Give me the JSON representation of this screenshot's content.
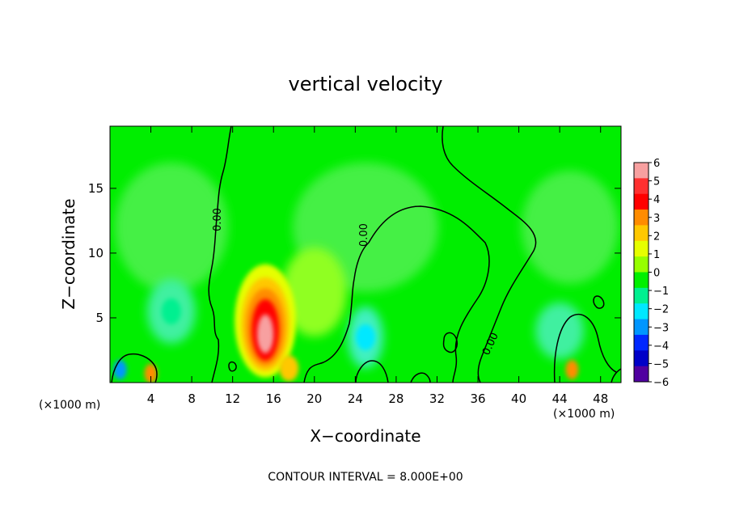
{
  "chart_data": {
    "type": "heatmap",
    "title": "vertical velocity",
    "xlabel": "X−coordinate",
    "ylabel": "Z−coordinate",
    "x_unit_label": "(×1000 m)",
    "y_unit_label": "(×1000 m)",
    "footer": "CONTOUR INTERVAL = 8.000E+00",
    "xlim": [
      0,
      50
    ],
    "ylim": [
      0,
      19.8
    ],
    "x_ticks": [
      4,
      8,
      12,
      16,
      20,
      24,
      28,
      32,
      36,
      40,
      44,
      48
    ],
    "y_ticks": [
      5,
      10,
      15
    ],
    "colorbar": {
      "range": [
        -6,
        6
      ],
      "tick_labels": [
        "6",
        "5",
        "4",
        "3",
        "2",
        "1",
        "0",
        "−1",
        "−2",
        "−3",
        "−4",
        "−5",
        "−6"
      ],
      "colors": [
        "#f7a0a0",
        "#ff3030",
        "#ff0000",
        "#ff8c00",
        "#ffc800",
        "#e6ff00",
        "#96ff00",
        "#00f000",
        "#00f090",
        "#00e8ff",
        "#0096ff",
        "#0028ff",
        "#0000c8",
        "#5000a0"
      ]
    },
    "zero_contour_label": "0.00",
    "zero_contour_label_2": "0.00",
    "zero_contour_label_3": "0.00",
    "features": [
      {
        "name": "main updraft",
        "x": 15.2,
        "z": 3.5,
        "value": 5.8
      },
      {
        "name": "updraft cell",
        "x": 4.0,
        "z": 0.7,
        "value": 3.0
      },
      {
        "name": "updraft cell",
        "x": 17.5,
        "z": 1.1,
        "value": 2.2
      },
      {
        "name": "updraft cell",
        "x": 45.2,
        "z": 1.0,
        "value": 3.2
      },
      {
        "name": "downdraft cell",
        "x": 1.0,
        "z": 1.0,
        "value": -2.8
      },
      {
        "name": "downdraft region",
        "x": 25.0,
        "z": 3.5,
        "value": -1.8
      },
      {
        "name": "downdraft region",
        "x": 6.0,
        "z": 5.5,
        "value": -1.2
      }
    ]
  }
}
